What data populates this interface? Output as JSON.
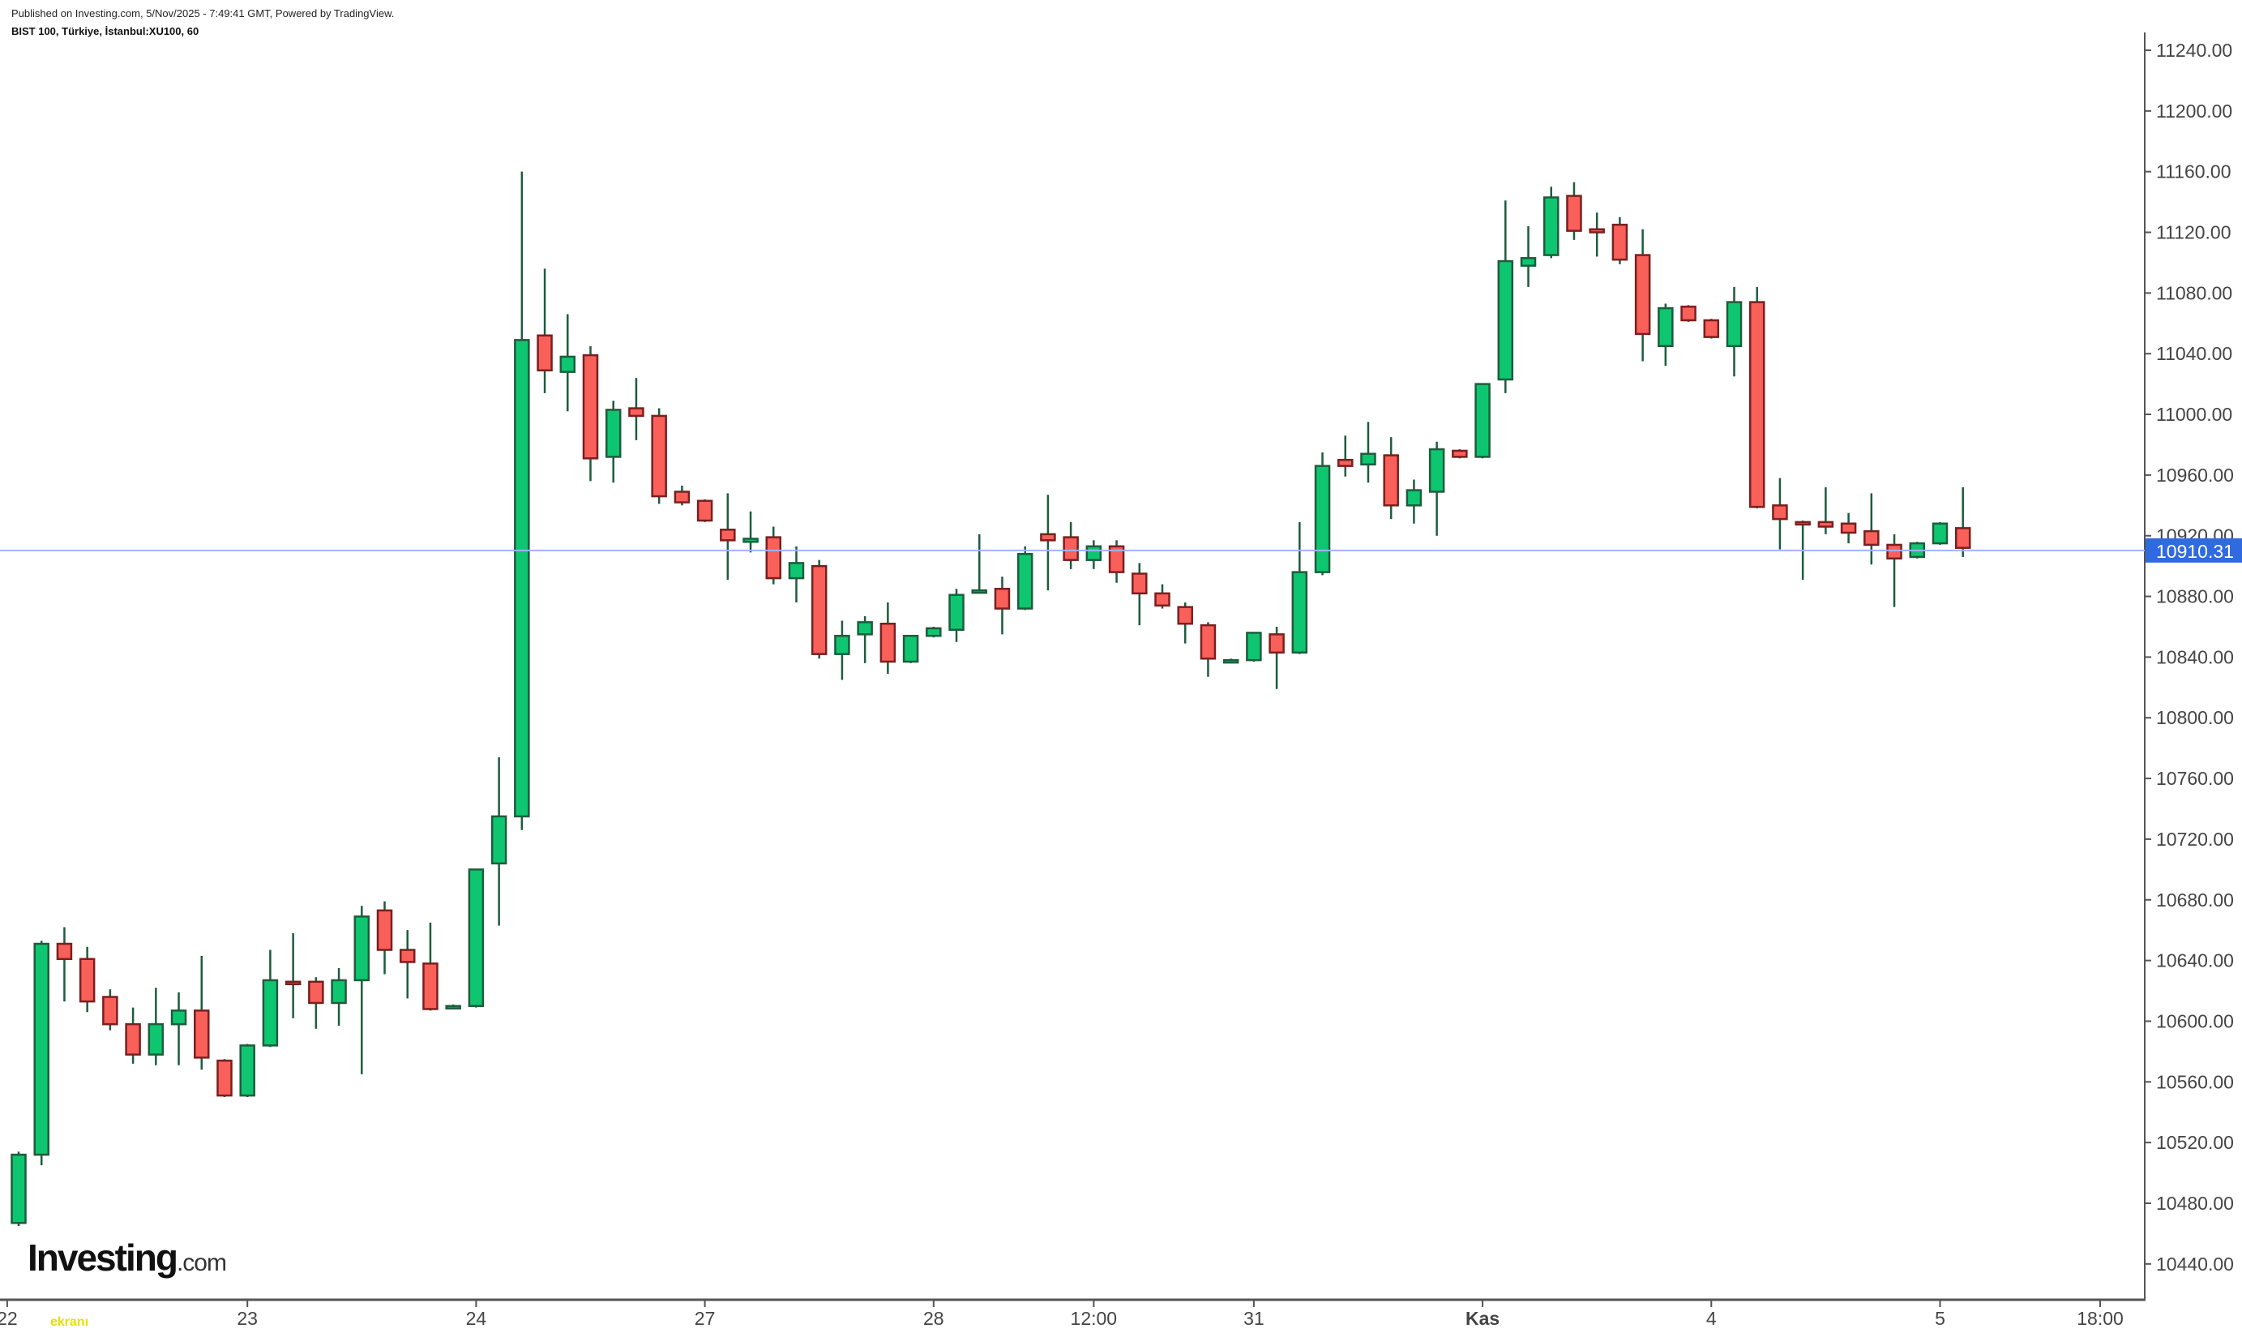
{
  "header": {
    "published": "Published on Investing.com, 5/Nov/2025 - 7:49:41 GMT, Powered by TradingView.",
    "symbol": "BIST 100, Türkiye, İstanbul:XU100, 60"
  },
  "logo": {
    "main": "Investing",
    "suffix": ".com"
  },
  "watermark": "ekranı",
  "colors": {
    "up": "#0ec66f",
    "down": "#f9605a",
    "up_border": "#1d5c3d",
    "down_border": "#7a1f1f",
    "price_line": "#9fb3ff",
    "price_label": "#2f6ae0"
  },
  "chart_data": {
    "type": "candlestick",
    "title": "BIST 100, Türkiye, İstanbul:XU100, 60",
    "interval": "60",
    "ylim": [
      10420,
      11250
    ],
    "yticks": [
      "10440.00",
      "10480.00",
      "10520.00",
      "10560.00",
      "10600.00",
      "10640.00",
      "10680.00",
      "10720.00",
      "10760.00",
      "10800.00",
      "10840.00",
      "10880.00",
      "10920.00",
      "10960.00",
      "11000.00",
      "11040.00",
      "11080.00",
      "11120.00",
      "11160.00",
      "11200.00",
      "11240.00"
    ],
    "xticks": [
      {
        "label": "22",
        "index": -0.5
      },
      {
        "label": "23",
        "index": 10
      },
      {
        "label": "24",
        "index": 20
      },
      {
        "label": "27",
        "index": 30
      },
      {
        "label": "28",
        "index": 40
      },
      {
        "label": "12:00",
        "index": 47
      },
      {
        "label": "31",
        "index": 54
      },
      {
        "label": "Kas",
        "index": 64,
        "bold": true
      },
      {
        "label": "4",
        "index": 74
      },
      {
        "label": "5",
        "index": 84
      },
      {
        "label": "18:00",
        "index": 91
      }
    ],
    "last_price": 10910.31,
    "last_price_label": "10910.31",
    "ohlc_columns": [
      "open",
      "high",
      "low",
      "close"
    ],
    "candles": [
      [
        10467,
        10514,
        10465,
        10512
      ],
      [
        10512,
        10653,
        10505,
        10651
      ],
      [
        10651,
        10662,
        10613,
        10641
      ],
      [
        10641,
        10649,
        10606,
        10613
      ],
      [
        10616,
        10621,
        10594,
        10598
      ],
      [
        10598,
        10609,
        10572,
        10578
      ],
      [
        10578,
        10622,
        10571,
        10598
      ],
      [
        10598,
        10619,
        10571,
        10607
      ],
      [
        10607,
        10643,
        10568,
        10576
      ],
      [
        10574,
        10575,
        10550,
        10551
      ],
      [
        10551,
        10585,
        10550,
        10584
      ],
      [
        10584,
        10647,
        10583,
        10627
      ],
      [
        10626,
        10658,
        10602,
        10625
      ],
      [
        10626,
        10629,
        10595,
        10612
      ],
      [
        10612,
        10635,
        10597,
        10627
      ],
      [
        10627,
        10676,
        10565,
        10669
      ],
      [
        10673,
        10679,
        10631,
        10647
      ],
      [
        10647,
        10660,
        10615,
        10639
      ],
      [
        10638,
        10665,
        10607,
        10608
      ],
      [
        10610,
        10611,
        10609,
        10610
      ],
      [
        10610,
        10700,
        10609,
        10700
      ],
      [
        10704,
        10774,
        10663,
        10735
      ],
      [
        10735,
        11160,
        10726,
        11049
      ],
      [
        11052,
        11096,
        11014,
        11029
      ],
      [
        11028,
        11066,
        11002,
        11038
      ],
      [
        11039,
        11045,
        10956,
        10971
      ],
      [
        10972,
        11009,
        10955,
        11003
      ],
      [
        11004,
        11024,
        10983,
        10999
      ],
      [
        10999,
        11004,
        10941,
        10946
      ],
      [
        10949,
        10953,
        10940,
        10942
      ],
      [
        10943,
        10944,
        10929,
        10930
      ],
      [
        10924,
        10948,
        10891,
        10917
      ],
      [
        10916,
        10936,
        10909,
        10918
      ],
      [
        10919,
        10926,
        10888,
        10892
      ],
      [
        10892,
        10913,
        10876,
        10902
      ],
      [
        10900,
        10904,
        10839,
        10842
      ],
      [
        10842,
        10864,
        10825,
        10854
      ],
      [
        10855,
        10867,
        10836,
        10863
      ],
      [
        10862,
        10876,
        10829,
        10837
      ],
      [
        10837,
        10854,
        10836,
        10854
      ],
      [
        10854,
        10860,
        10853,
        10859
      ],
      [
        10858,
        10885,
        10850,
        10881
      ],
      [
        10884,
        10921,
        10883,
        10884
      ],
      [
        10885,
        10893,
        10855,
        10872
      ],
      [
        10872,
        10913,
        10871,
        10908
      ],
      [
        10921,
        10947,
        10884,
        10917
      ],
      [
        10919,
        10929,
        10898,
        10904
      ],
      [
        10904,
        10917,
        10898,
        10913
      ],
      [
        10913,
        10917,
        10889,
        10896
      ],
      [
        10895,
        10902,
        10861,
        10882
      ],
      [
        10882,
        10888,
        10872,
        10874
      ],
      [
        10873,
        10876,
        10849,
        10862
      ],
      [
        10861,
        10863,
        10827,
        10839
      ],
      [
        10838,
        10839,
        10837,
        10838
      ],
      [
        10838,
        10856,
        10837,
        10856
      ],
      [
        10855,
        10860,
        10819,
        10843
      ],
      [
        10843,
        10929,
        10842,
        10896
      ],
      [
        10896,
        10975,
        10894,
        10966
      ],
      [
        10970,
        10986,
        10959,
        10966
      ],
      [
        10967,
        10995,
        10955,
        10974
      ],
      [
        10973,
        10985,
        10931,
        10940
      ],
      [
        10940,
        10957,
        10928,
        10950
      ],
      [
        10949,
        10982,
        10920,
        10977
      ],
      [
        10976,
        10977,
        10971,
        10972
      ],
      [
        10972,
        11020,
        10971,
        11020
      ],
      [
        11023,
        11141,
        11014,
        11101
      ],
      [
        11098,
        11124,
        11084,
        11103
      ],
      [
        11105,
        11150,
        11103,
        11143
      ],
      [
        11144,
        11153,
        11115,
        11121
      ],
      [
        11122,
        11133,
        11104,
        11120
      ],
      [
        11125,
        11130,
        11099,
        11102
      ],
      [
        11105,
        11122,
        11035,
        11053
      ],
      [
        11045,
        11073,
        11032,
        11070
      ],
      [
        11071,
        11072,
        11061,
        11062
      ],
      [
        11062,
        11063,
        11050,
        11051
      ],
      [
        11045,
        11084,
        11025,
        11074
      ],
      [
        11074,
        11084,
        10938,
        10939
      ],
      [
        10940,
        10958,
        10911,
        10931
      ],
      [
        10929,
        10930,
        10891,
        10928
      ],
      [
        10929,
        10952,
        10921,
        10926
      ],
      [
        10928,
        10935,
        10915,
        10922
      ],
      [
        10923,
        10948,
        10901,
        10914
      ],
      [
        10914,
        10921,
        10873,
        10905
      ],
      [
        10906,
        10916,
        10905,
        10915
      ],
      [
        10915,
        10929,
        10914,
        10928
      ],
      [
        10925,
        10952,
        10906,
        10912
      ]
    ]
  }
}
